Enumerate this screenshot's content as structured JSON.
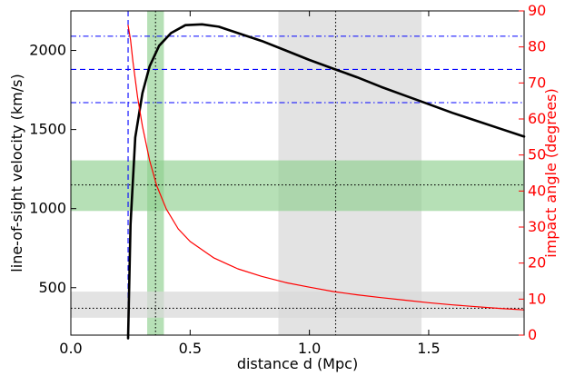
{
  "chart_data": {
    "type": "line",
    "xlabel": "distance d (Mpc)",
    "ylabel": "line-of-sight velocity (km/s)",
    "y2label": "impact angle (degrees)",
    "xlim": [
      0.0,
      1.9
    ],
    "ylim": [
      200,
      2250
    ],
    "y2lim": [
      0,
      90
    ],
    "xticks": [
      "0.0",
      "0.5",
      "1.0",
      "1.5"
    ],
    "xtick_values": [
      0.0,
      0.5,
      1.0,
      1.5
    ],
    "yticks": [
      "500",
      "1000",
      "1500",
      "2000"
    ],
    "ytick_values": [
      500,
      1000,
      1500,
      2000
    ],
    "y2ticks": [
      "0",
      "10",
      "20",
      "30",
      "40",
      "50",
      "60",
      "70",
      "80",
      "90"
    ],
    "y2tick_values": [
      0,
      10,
      20,
      30,
      40,
      50,
      60,
      70,
      80,
      90
    ],
    "colors": {
      "velocity_curve": "#000000",
      "angle_curve": "#ff0000",
      "green_band": "#8fcf8f",
      "gray_band": "#d9d9d9",
      "blue_lines": "#0000ff",
      "right_axis": "#ff0000"
    },
    "series": [
      {
        "axis": "left",
        "x": [
          0.24,
          0.25,
          0.27,
          0.3,
          0.33,
          0.37,
          0.42,
          0.48,
          0.55,
          0.62,
          0.7,
          0.8,
          0.9,
          1.0,
          1.1,
          1.2,
          1.3,
          1.4,
          1.5,
          1.6,
          1.7,
          1.8,
          1.9
        ],
        "values": [
          180,
          900,
          1450,
          1730,
          1900,
          2030,
          2110,
          2160,
          2165,
          2150,
          2110,
          2060,
          2000,
          1940,
          1885,
          1830,
          1770,
          1715,
          1660,
          1605,
          1555,
          1505,
          1455
        ]
      },
      {
        "axis": "right",
        "x": [
          0.24,
          0.25,
          0.26,
          0.28,
          0.3,
          0.33,
          0.36,
          0.4,
          0.45,
          0.5,
          0.6,
          0.7,
          0.8,
          0.9,
          1.0,
          1.1,
          1.2,
          1.3,
          1.4,
          1.5,
          1.6,
          1.7,
          1.8,
          1.9
        ],
        "values": [
          86,
          82,
          76,
          66,
          58,
          48.5,
          41.5,
          35,
          29.5,
          26,
          21.4,
          18.4,
          16.3,
          14.6,
          13.3,
          12.1,
          11.2,
          10.4,
          9.7,
          9.0,
          8.4,
          7.9,
          7.4,
          7.0
        ]
      }
    ],
    "shaded_bands": [
      {
        "orientation": "vertical",
        "axis": "x",
        "from": 0.32,
        "to": 0.39,
        "color": "green"
      },
      {
        "orientation": "vertical",
        "axis": "x",
        "from": 0.87,
        "to": 1.47,
        "color": "gray"
      },
      {
        "orientation": "horizontal",
        "axis": "y",
        "from": 985,
        "to": 1305,
        "color": "green"
      },
      {
        "orientation": "horizontal",
        "axis": "y",
        "from": 310,
        "to": 475,
        "color": "gray"
      }
    ],
    "reference_lines": [
      {
        "orientation": "vertical",
        "value": 0.24,
        "style": "dashed",
        "color": "blue"
      },
      {
        "orientation": "vertical",
        "value": 0.355,
        "style": "dotted",
        "color": "black"
      },
      {
        "orientation": "vertical",
        "value": 1.11,
        "style": "dotted",
        "color": "black"
      },
      {
        "orientation": "horizontal",
        "value": 2090,
        "style": "dashdot",
        "color": "blue"
      },
      {
        "orientation": "horizontal",
        "value": 1880,
        "style": "dashed",
        "color": "blue"
      },
      {
        "orientation": "horizontal",
        "value": 1670,
        "style": "dashdot",
        "color": "blue"
      },
      {
        "orientation": "horizontal",
        "value": 1150,
        "style": "dotted",
        "color": "black"
      },
      {
        "orientation": "horizontal",
        "value": 370,
        "style": "dotted",
        "color": "black"
      }
    ],
    "grid": false,
    "legend": "none"
  }
}
